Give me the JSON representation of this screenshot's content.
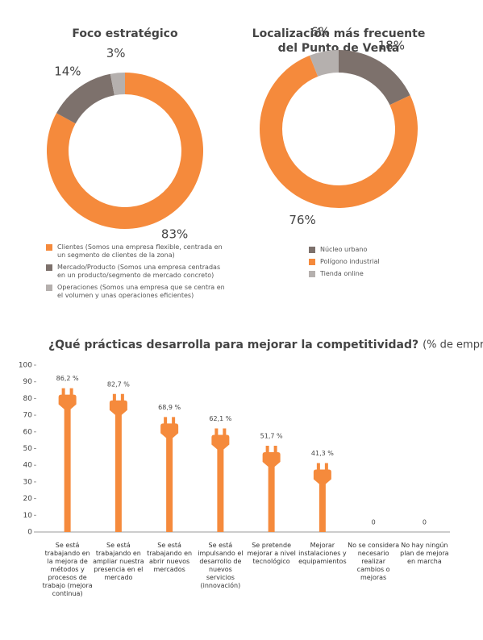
{
  "chart_data": [
    {
      "type": "pie",
      "title": "Foco estratégico",
      "categories": [
        "Clientes (Somos una empresa flexible, centrada en un segmento de clientes de la zona)",
        "Mercado/Producto (Somos una empresa centradas en un producto/segmento de mercado concreto)",
        "Operaciones (Somos una empresa que se centra en el volumen y unas operaciones eficientes)"
      ],
      "values": [
        83,
        14,
        3
      ],
      "value_labels": [
        "83%",
        "14%",
        "3%"
      ],
      "colors": [
        "#f58a3c",
        "#7d716c",
        "#b5b0ae"
      ]
    },
    {
      "type": "pie",
      "title": [
        "Localización más frecuente",
        "del Punto de Venta"
      ],
      "categories": [
        "Núcleo urbano",
        "Polígono industrial",
        "Tienda online"
      ],
      "values": [
        18,
        76,
        6
      ],
      "value_labels": [
        "18%",
        "76%",
        "6%"
      ],
      "colors": [
        "#7d716c",
        "#f58a3c",
        "#b5b0ae"
      ]
    },
    {
      "type": "bar",
      "title": "¿Qué prácticas desarrolla para mejorar la competitividad?",
      "subtitle": "(% de empresas)",
      "categories": [
        "Se está trabajando en la mejora de métodos y procesos de trabajo (mejora continua)",
        "Se está trabajando en ampliar nuestra presencia en el mercado",
        "Se está trabajando en abrir nuevos mercados",
        "Se está impulsando el desarrollo de nuevos servicios (innovación)",
        "Se pretende mejorar a nivel tecnológico",
        "Mejorar instalaciones y equipamientos",
        "No se considera necesario realizar cambios o mejoras",
        "No hay ningún plan de mejora en marcha"
      ],
      "values": [
        86.2,
        82.7,
        68.9,
        62.1,
        51.7,
        41.3,
        0,
        0
      ],
      "value_labels": [
        "86,2 %",
        "82,7 %",
        "68,9 %",
        "62,1 %",
        "51,7 %",
        "41,3 %",
        "0",
        "0"
      ],
      "color": "#f58a3c",
      "ylim": [
        0,
        100
      ],
      "yticks": [
        0,
        10,
        20,
        30,
        40,
        50,
        60,
        70,
        80,
        90,
        100
      ]
    }
  ]
}
